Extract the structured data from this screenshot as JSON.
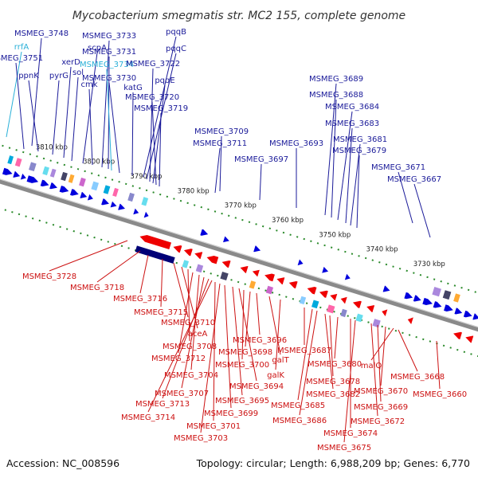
{
  "title": "Mycobacterium smegmatis str. MC2 155, complete genome",
  "footer": {
    "accession": "Accession: NC_008596",
    "summary": "Topology: circular; Length: 6,988,209 bp; Genes: 6,770"
  },
  "colors": {
    "forward": "#0000dd",
    "reverse": "#ee0000",
    "label_forward": "#1a1a99",
    "label_reverse": "#cc1111",
    "label_highlight": "#2ab0d8",
    "tick": "#2a8a2a",
    "backbone": "#8a8a8a"
  },
  "scale_labels": [
    "3810 kbp",
    "3800 kbp",
    "3790 kbp",
    "3780 kbp",
    "3770 kbp",
    "3760 kbp",
    "3750 kbp",
    "3740 kbp",
    "3730 kbp"
  ],
  "forward_labels": [
    "rrfA",
    "MSMEG_3748",
    "MSMEG_3751",
    "ppnK",
    "pyrG",
    "xerD",
    "sol",
    "scpA",
    "cmk",
    "MSMEG_3733",
    "MSMEG_3731",
    "MSMEG_3734",
    "MSMEG_3730",
    "katG",
    "pqqB",
    "pqqC",
    "MSMEG_3722",
    "pqqE",
    "MSMEG_3720",
    "MSMEG_3719",
    "MSMEG_3709",
    "MSMEG_3711",
    "MSMEG_3697",
    "MSMEG_3693",
    "MSMEG_3689",
    "MSMEG_3688",
    "MSMEG_3684",
    "MSMEG_3683",
    "MSMEG_3681",
    "MSMEG_3679",
    "MSMEG_3671",
    "MSMEG_3667"
  ],
  "reverse_labels": [
    "MSMEG_3728",
    "MSMEG_3718",
    "MSMEG_3716",
    "MSMEG_3715",
    "MSMEG_3710",
    "aceA",
    "MSMEG_3708",
    "MSMEG_3712",
    "MSMEG_3704",
    "MSMEG_3707",
    "MSMEG_3713",
    "MSMEG_3714",
    "MSMEG_3701",
    "MSMEG_3703",
    "MSMEG_3699",
    "MSMEG_3695",
    "MSMEG_3694",
    "MSMEG_3700",
    "MSMEG_3698",
    "MSMEG_3696",
    "galT",
    "galK",
    "MSMEG_3687",
    "MSMEG_3685",
    "MSMEG_3686",
    "MSMEG_3682",
    "MSMEG_3678",
    "MSMEG_3680",
    "MSMEG_3674",
    "MSMEG_3675",
    "MSMEG_3672",
    "MSMEG_3669",
    "MSMEG_3670",
    "malQ",
    "MSMEG_3668",
    "MSMEG_3660"
  ]
}
